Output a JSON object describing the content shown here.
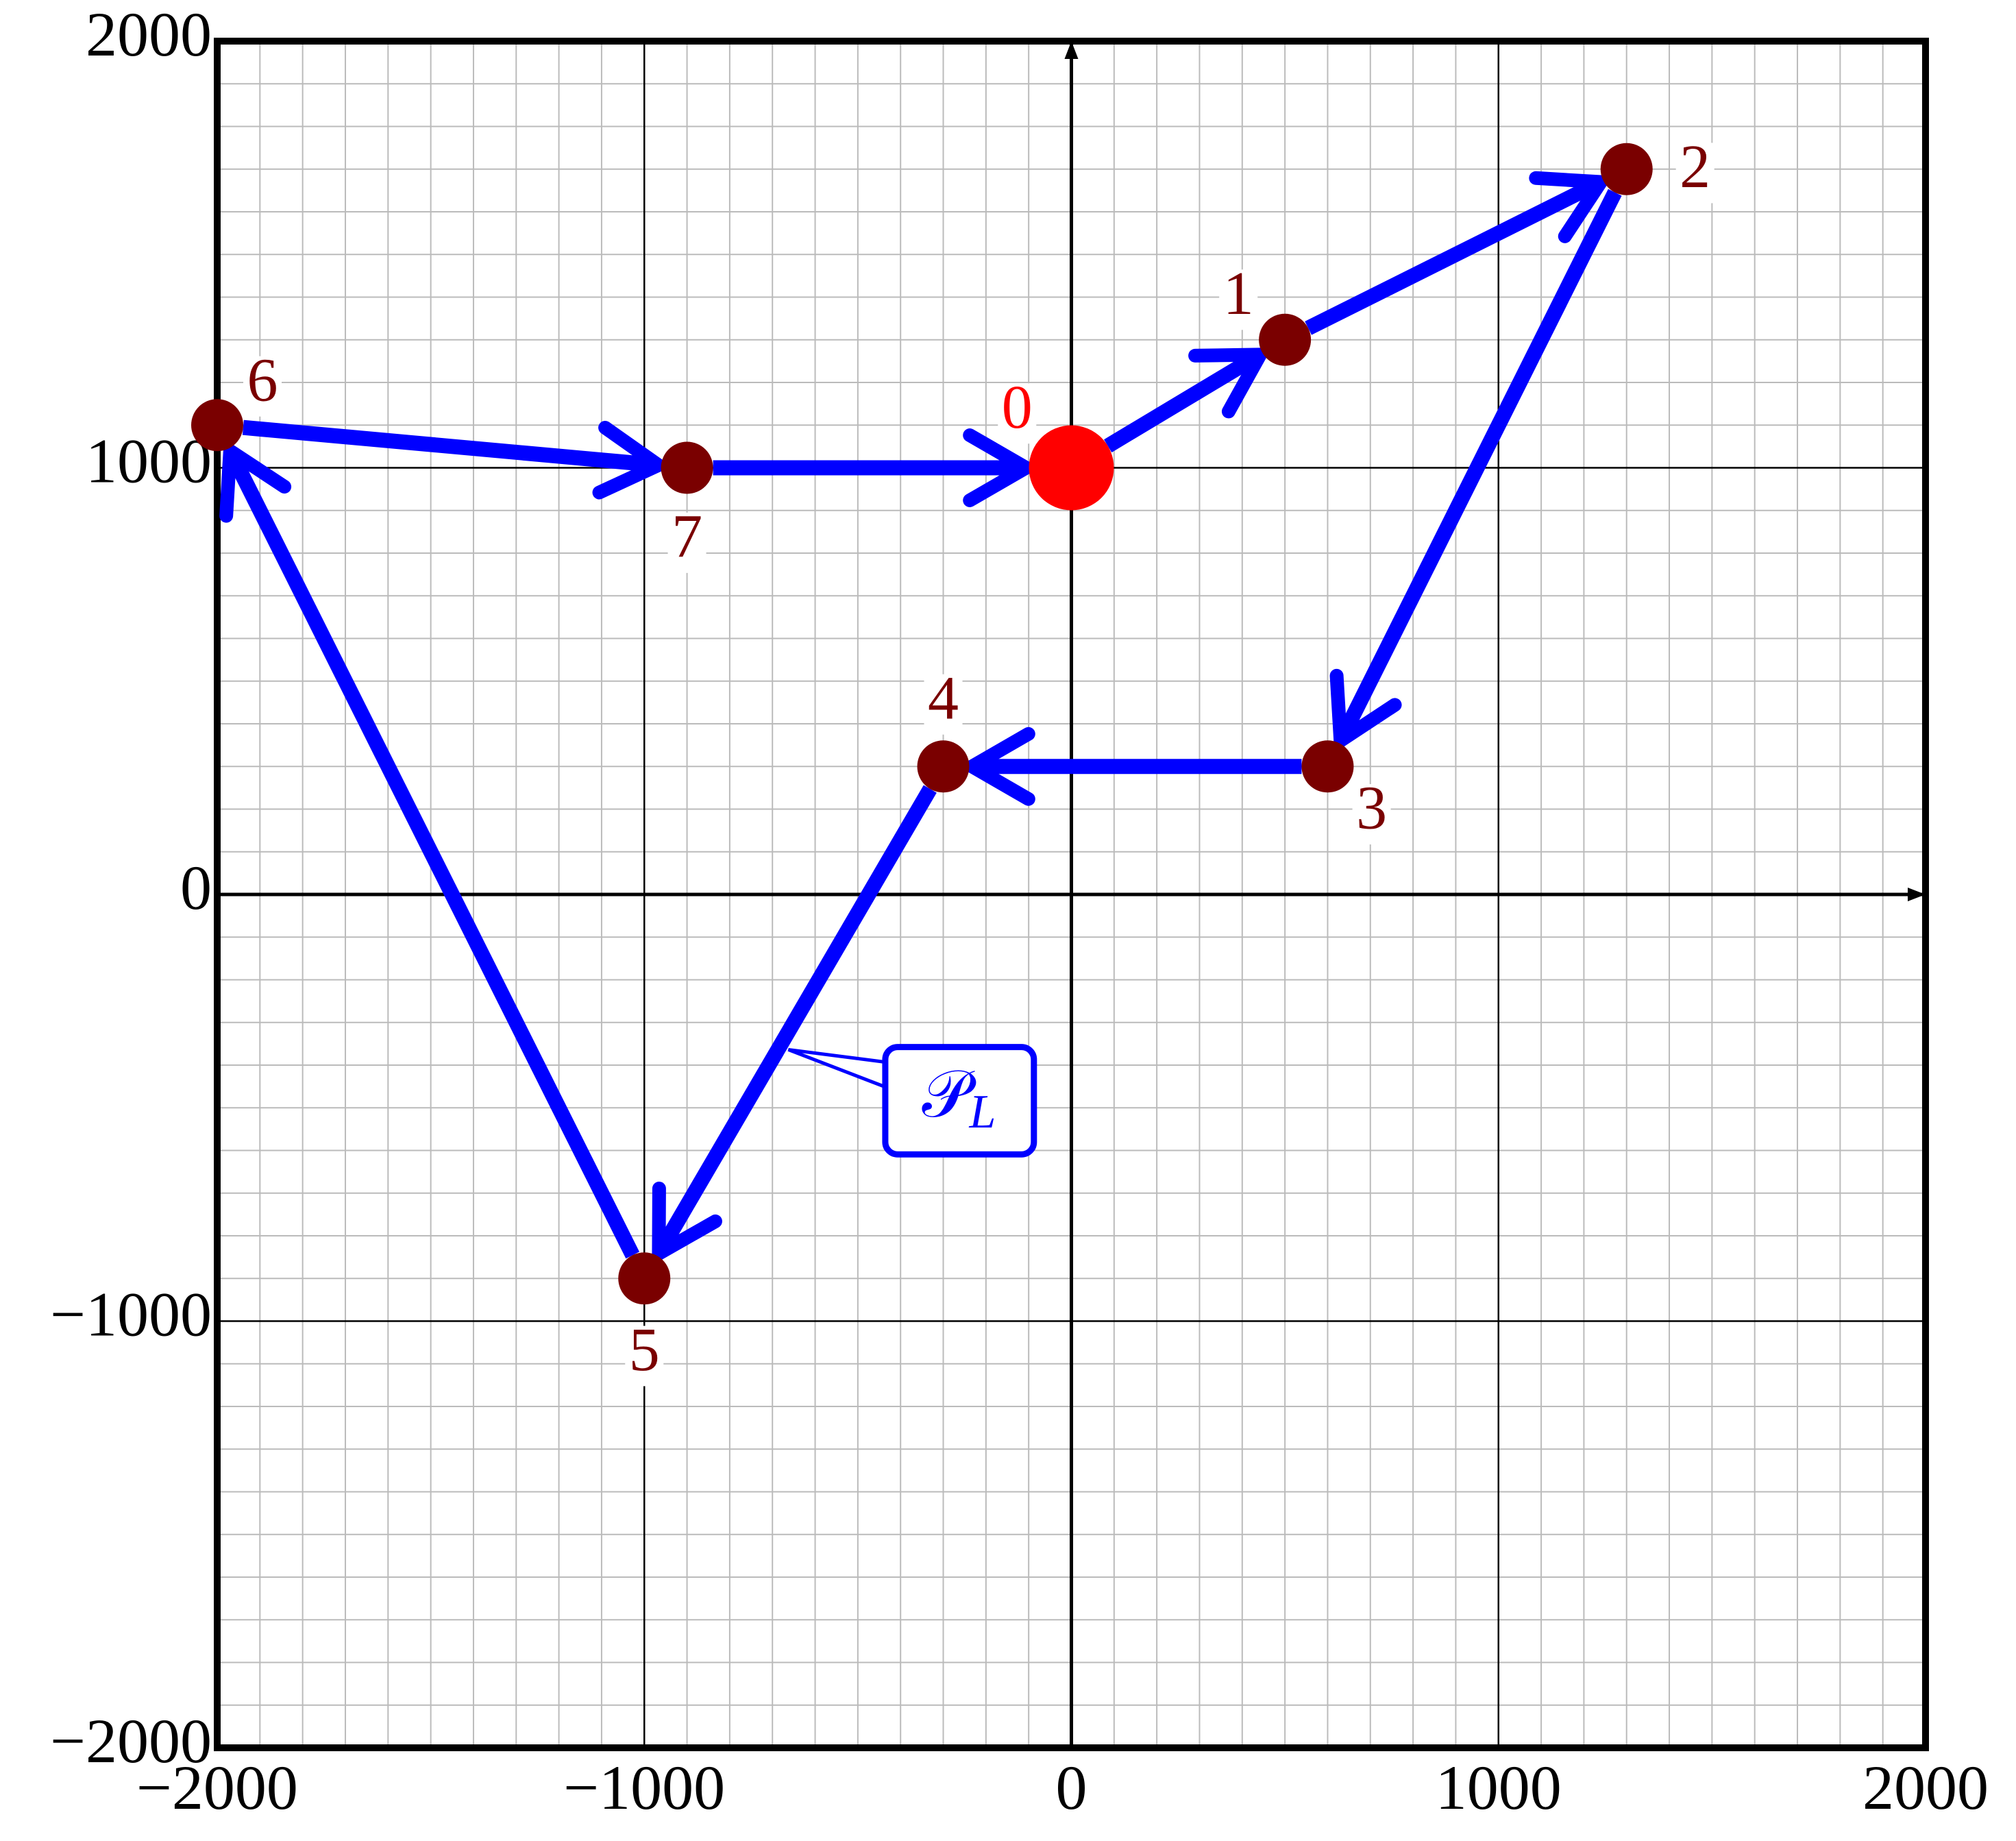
{
  "chart_data": {
    "type": "scatter",
    "x": [
      0,
      500,
      1300,
      600,
      -300,
      -1000,
      -2000,
      -900
    ],
    "y": [
      1000,
      1300,
      1700,
      300,
      300,
      -900,
      1100,
      1000
    ],
    "labels": [
      "0",
      "1",
      "2",
      "3",
      "4",
      "5",
      "6",
      "7"
    ],
    "point_colors": [
      "#ff0000",
      "#7a0000",
      "#7a0000",
      "#7a0000",
      "#7a0000",
      "#7a0000",
      "#7a0000",
      "#7a0000"
    ],
    "path_color": "#0000ff",
    "closed": true,
    "annotation": {
      "text": "𝒫",
      "sub": "L"
    },
    "xlim": [
      -2000,
      2000
    ],
    "ylim": [
      -2000,
      2000
    ],
    "xticks": [
      {
        "value": -2000,
        "label": "−2000"
      },
      {
        "value": -1000,
        "label": "−1000"
      },
      0,
      1000,
      2000
    ],
    "yticks": [
      {
        "value": -2000,
        "label": "−2000"
      },
      {
        "value": -1000,
        "label": "−1000"
      },
      0,
      1000,
      2000
    ],
    "grid": true
  }
}
